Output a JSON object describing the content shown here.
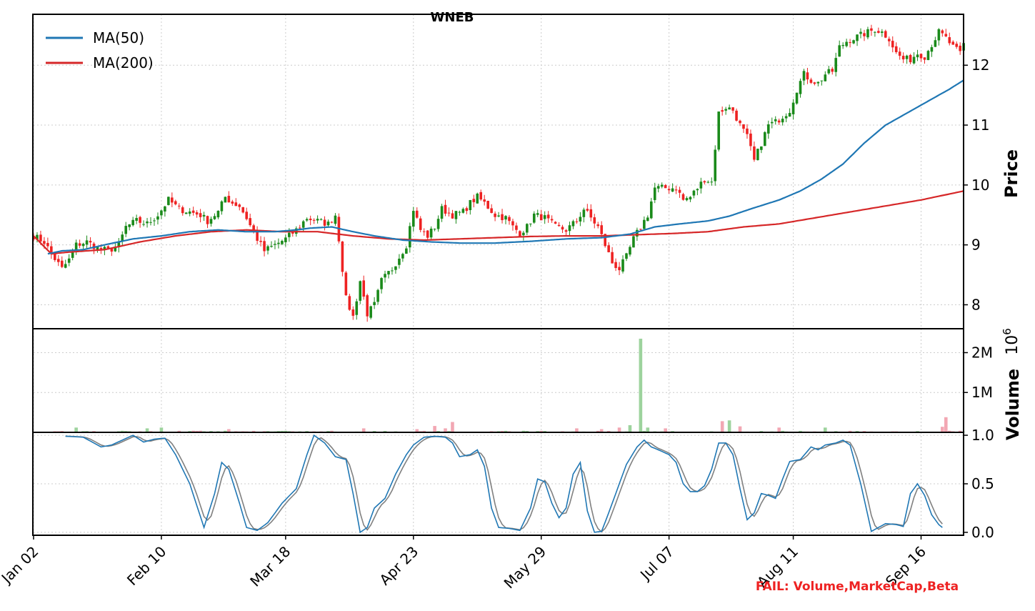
{
  "chart_data": [
    {
      "type": "candlestick",
      "title": "WNEB",
      "ylabel": "Price",
      "ylim": [
        7.6,
        12.85
      ],
      "yticks": [
        "8",
        "9",
        "10",
        "11",
        "12"
      ],
      "xtick_labels": [
        "Jan 02",
        "Feb 10",
        "Mar 18",
        "Apr 23",
        "May 29",
        "Jul 07",
        "Aug 11",
        "Sep 16"
      ],
      "grid": true,
      "legend_position": "top-left",
      "legend": [
        "MA(50)",
        "MA(200)"
      ],
      "colors": {
        "up": "#1a8a1a",
        "down": "#ee2222",
        "ma50": "#1f77b4",
        "ma200": "#d62728"
      },
      "price_knots": [
        [
          0,
          9.15
        ],
        [
          3,
          9.05
        ],
        [
          5,
          8.85
        ],
        [
          8,
          8.6
        ],
        [
          10,
          8.75
        ],
        [
          12,
          9.0
        ],
        [
          15,
          9.05
        ],
        [
          18,
          8.95
        ],
        [
          21,
          8.9
        ],
        [
          24,
          9.0
        ],
        [
          26,
          9.3
        ],
        [
          29,
          9.4
        ],
        [
          32,
          9.35
        ],
        [
          35,
          9.5
        ],
        [
          38,
          9.75
        ],
        [
          41,
          9.6
        ],
        [
          44,
          9.55
        ],
        [
          47,
          9.5
        ],
        [
          49,
          9.4
        ],
        [
          52,
          9.55
        ],
        [
          54,
          9.8
        ],
        [
          56,
          9.7
        ],
        [
          58,
          9.65
        ],
        [
          60,
          9.45
        ],
        [
          62,
          9.2
        ],
        [
          65,
          8.9
        ],
        [
          68,
          9.0
        ],
        [
          71,
          9.1
        ],
        [
          74,
          9.25
        ],
        [
          77,
          9.45
        ],
        [
          80,
          9.4
        ],
        [
          83,
          9.35
        ],
        [
          85,
          9.5
        ],
        [
          86,
          9.1
        ],
        [
          88,
          8.1
        ],
        [
          90,
          7.8
        ],
        [
          92,
          8.4
        ],
        [
          94,
          7.85
        ],
        [
          96,
          8.0
        ],
        [
          98,
          8.4
        ],
        [
          101,
          8.6
        ],
        [
          103,
          8.8
        ],
        [
          105,
          9.0
        ],
        [
          107,
          9.6
        ],
        [
          109,
          9.25
        ],
        [
          111,
          9.15
        ],
        [
          113,
          9.3
        ],
        [
          115,
          9.6
        ],
        [
          118,
          9.5
        ],
        [
          121,
          9.55
        ],
        [
          123,
          9.7
        ],
        [
          125,
          9.8
        ],
        [
          127,
          9.7
        ],
        [
          130,
          9.5
        ],
        [
          133,
          9.45
        ],
        [
          135,
          9.3
        ],
        [
          137,
          9.2
        ],
        [
          139,
          9.3
        ],
        [
          141,
          9.5
        ],
        [
          144,
          9.45
        ],
        [
          147,
          9.3
        ],
        [
          150,
          9.25
        ],
        [
          153,
          9.4
        ],
        [
          155,
          9.6
        ],
        [
          157,
          9.45
        ],
        [
          159,
          9.3
        ],
        [
          161,
          9.0
        ],
        [
          163,
          8.7
        ],
        [
          165,
          8.6
        ],
        [
          167,
          8.8
        ],
        [
          169,
          9.1
        ],
        [
          171,
          9.3
        ],
        [
          173,
          9.5
        ],
        [
          175,
          9.95
        ],
        [
          178,
          9.95
        ],
        [
          181,
          9.95
        ],
        [
          183,
          9.75
        ],
        [
          185,
          9.8
        ],
        [
          187,
          9.95
        ],
        [
          189,
          10.1
        ],
        [
          191,
          10.05
        ],
        [
          193,
          11.2
        ],
        [
          195,
          11.3
        ],
        [
          197,
          11.25
        ],
        [
          199,
          11.0
        ],
        [
          201,
          10.8
        ],
        [
          203,
          10.4
        ],
        [
          205,
          10.7
        ],
        [
          207,
          11.0
        ],
        [
          209,
          11.05
        ],
        [
          211,
          11.15
        ],
        [
          213,
          11.25
        ],
        [
          215,
          11.6
        ],
        [
          217,
          11.85
        ],
        [
          219,
          11.75
        ],
        [
          221,
          11.7
        ],
        [
          223,
          11.85
        ],
        [
          225,
          11.9
        ],
        [
          227,
          12.3
        ],
        [
          229,
          12.4
        ],
        [
          231,
          12.45
        ],
        [
          233,
          12.5
        ],
        [
          235,
          12.55
        ],
        [
          237,
          12.6
        ],
        [
          239,
          12.55
        ],
        [
          241,
          12.45
        ],
        [
          243,
          12.2
        ],
        [
          245,
          12.1
        ],
        [
          247,
          12.1
        ],
        [
          249,
          12.2
        ],
        [
          251,
          12.15
        ],
        [
          253,
          12.35
        ],
        [
          255,
          12.55
        ],
        [
          257,
          12.45
        ],
        [
          259,
          12.3
        ],
        [
          261,
          12.2
        ],
        [
          262,
          12.35
        ]
      ],
      "ma50_knots": [
        [
          4,
          8.85
        ],
        [
          8,
          8.9
        ],
        [
          14,
          8.92
        ],
        [
          20,
          9.0
        ],
        [
          28,
          9.1
        ],
        [
          36,
          9.15
        ],
        [
          44,
          9.22
        ],
        [
          52,
          9.25
        ],
        [
          60,
          9.22
        ],
        [
          68,
          9.22
        ],
        [
          74,
          9.25
        ],
        [
          78,
          9.28
        ],
        [
          84,
          9.3
        ],
        [
          90,
          9.22
        ],
        [
          96,
          9.15
        ],
        [
          104,
          9.08
        ],
        [
          112,
          9.05
        ],
        [
          120,
          9.03
        ],
        [
          130,
          9.03
        ],
        [
          140,
          9.06
        ],
        [
          150,
          9.1
        ],
        [
          160,
          9.12
        ],
        [
          168,
          9.18
        ],
        [
          175,
          9.3
        ],
        [
          182,
          9.35
        ],
        [
          190,
          9.4
        ],
        [
          196,
          9.48
        ],
        [
          202,
          9.6
        ],
        [
          210,
          9.75
        ],
        [
          216,
          9.9
        ],
        [
          222,
          10.1
        ],
        [
          228,
          10.35
        ],
        [
          234,
          10.7
        ],
        [
          240,
          11.0
        ],
        [
          246,
          11.2
        ],
        [
          252,
          11.4
        ],
        [
          258,
          11.6
        ],
        [
          262,
          11.75
        ]
      ],
      "ma200_knots": [
        [
          0,
          9.15
        ],
        [
          5,
          8.85
        ],
        [
          10,
          8.88
        ],
        [
          20,
          8.92
        ],
        [
          30,
          9.05
        ],
        [
          40,
          9.15
        ],
        [
          50,
          9.22
        ],
        [
          60,
          9.25
        ],
        [
          70,
          9.22
        ],
        [
          80,
          9.22
        ],
        [
          90,
          9.15
        ],
        [
          100,
          9.1
        ],
        [
          110,
          9.08
        ],
        [
          120,
          9.1
        ],
        [
          130,
          9.12
        ],
        [
          140,
          9.14
        ],
        [
          150,
          9.15
        ],
        [
          160,
          9.15
        ],
        [
          170,
          9.17
        ],
        [
          180,
          9.19
        ],
        [
          190,
          9.22
        ],
        [
          200,
          9.3
        ],
        [
          210,
          9.35
        ],
        [
          220,
          9.45
        ],
        [
          230,
          9.55
        ],
        [
          240,
          9.65
        ],
        [
          250,
          9.75
        ],
        [
          262,
          9.9
        ]
      ]
    },
    {
      "type": "bar",
      "ylabel": "Volume",
      "scale_label": "10^6",
      "ylim": [
        0,
        2.6
      ],
      "yticks": [
        "1M",
        "2M"
      ],
      "colors": {
        "up": "#9dd39d",
        "down": "#f2a7b3"
      },
      "baseline_volume": 0.03,
      "spikes": [
        [
          12,
          0.12
        ],
        [
          32,
          0.1
        ],
        [
          36,
          0.12
        ],
        [
          55,
          0.08
        ],
        [
          93,
          0.1
        ],
        [
          108,
          0.08
        ],
        [
          113,
          0.16
        ],
        [
          116,
          0.1
        ],
        [
          118,
          0.26
        ],
        [
          153,
          0.1
        ],
        [
          160,
          0.08
        ],
        [
          165,
          0.12
        ],
        [
          168,
          0.18
        ],
        [
          171,
          2.35
        ],
        [
          173,
          0.12
        ],
        [
          178,
          0.1
        ],
        [
          194,
          0.28
        ],
        [
          196,
          0.3
        ],
        [
          199,
          0.15
        ],
        [
          210,
          0.12
        ],
        [
          223,
          0.12
        ],
        [
          256,
          0.14
        ],
        [
          257,
          0.38
        ]
      ]
    },
    {
      "type": "line",
      "ylim": [
        -0.03,
        1.03
      ],
      "yticks": [
        "0.0",
        "0.5",
        "1.0"
      ],
      "colors": {
        "k": "#1f77b4",
        "d": "#808080"
      },
      "oscillator_knots": [
        [
          9,
          0.99
        ],
        [
          14,
          0.98
        ],
        [
          19,
          0.88
        ],
        [
          22,
          0.9
        ],
        [
          25,
          0.95
        ],
        [
          28,
          1.0
        ],
        [
          31,
          0.93
        ],
        [
          34,
          0.96
        ],
        [
          37,
          0.97
        ],
        [
          40,
          0.8
        ],
        [
          44,
          0.5
        ],
        [
          48,
          0.05
        ],
        [
          51,
          0.4
        ],
        [
          53,
          0.72
        ],
        [
          55,
          0.65
        ],
        [
          58,
          0.3
        ],
        [
          60,
          0.05
        ],
        [
          63,
          0.02
        ],
        [
          66,
          0.1
        ],
        [
          70,
          0.3
        ],
        [
          74,
          0.45
        ],
        [
          77,
          0.8
        ],
        [
          79,
          1.0
        ],
        [
          82,
          0.92
        ],
        [
          85,
          0.78
        ],
        [
          88,
          0.75
        ],
        [
          90,
          0.4
        ],
        [
          92,
          0.0
        ],
        [
          94,
          0.05
        ],
        [
          96,
          0.25
        ],
        [
          99,
          0.35
        ],
        [
          102,
          0.6
        ],
        [
          105,
          0.8
        ],
        [
          107,
          0.9
        ],
        [
          110,
          0.98
        ],
        [
          113,
          0.99
        ],
        [
          116,
          0.98
        ],
        [
          118,
          0.92
        ],
        [
          120,
          0.78
        ],
        [
          123,
          0.8
        ],
        [
          125,
          0.85
        ],
        [
          127,
          0.68
        ],
        [
          129,
          0.25
        ],
        [
          131,
          0.05
        ],
        [
          134,
          0.04
        ],
        [
          137,
          0.02
        ],
        [
          140,
          0.25
        ],
        [
          142,
          0.55
        ],
        [
          144,
          0.52
        ],
        [
          146,
          0.3
        ],
        [
          148,
          0.15
        ],
        [
          150,
          0.25
        ],
        [
          152,
          0.6
        ],
        [
          154,
          0.72
        ],
        [
          156,
          0.22
        ],
        [
          158,
          0.0
        ],
        [
          160,
          0.01
        ],
        [
          162,
          0.2
        ],
        [
          164,
          0.4
        ],
        [
          167,
          0.7
        ],
        [
          170,
          0.88
        ],
        [
          172,
          0.95
        ],
        [
          174,
          0.88
        ],
        [
          176,
          0.85
        ],
        [
          179,
          0.8
        ],
        [
          181,
          0.72
        ],
        [
          183,
          0.5
        ],
        [
          185,
          0.42
        ],
        [
          187,
          0.42
        ],
        [
          189,
          0.48
        ],
        [
          191,
          0.65
        ],
        [
          193,
          0.92
        ],
        [
          195,
          0.92
        ],
        [
          197,
          0.8
        ],
        [
          199,
          0.45
        ],
        [
          201,
          0.13
        ],
        [
          203,
          0.2
        ],
        [
          205,
          0.4
        ],
        [
          207,
          0.38
        ],
        [
          209,
          0.35
        ],
        [
          211,
          0.55
        ],
        [
          213,
          0.73
        ],
        [
          216,
          0.75
        ],
        [
          219,
          0.88
        ],
        [
          221,
          0.85
        ],
        [
          223,
          0.9
        ],
        [
          226,
          0.92
        ],
        [
          228,
          0.95
        ],
        [
          230,
          0.9
        ],
        [
          233,
          0.5
        ],
        [
          236,
          0.01
        ],
        [
          238,
          0.05
        ],
        [
          240,
          0.09
        ],
        [
          243,
          0.08
        ],
        [
          245,
          0.06
        ],
        [
          247,
          0.4
        ],
        [
          249,
          0.5
        ],
        [
          251,
          0.38
        ],
        [
          253,
          0.18
        ],
        [
          255,
          0.08
        ],
        [
          256,
          0.05
        ]
      ]
    }
  ],
  "status": {
    "fail_text": "FAIL: Volume,MarketCap,Beta",
    "fail_color": "#ee2222"
  }
}
